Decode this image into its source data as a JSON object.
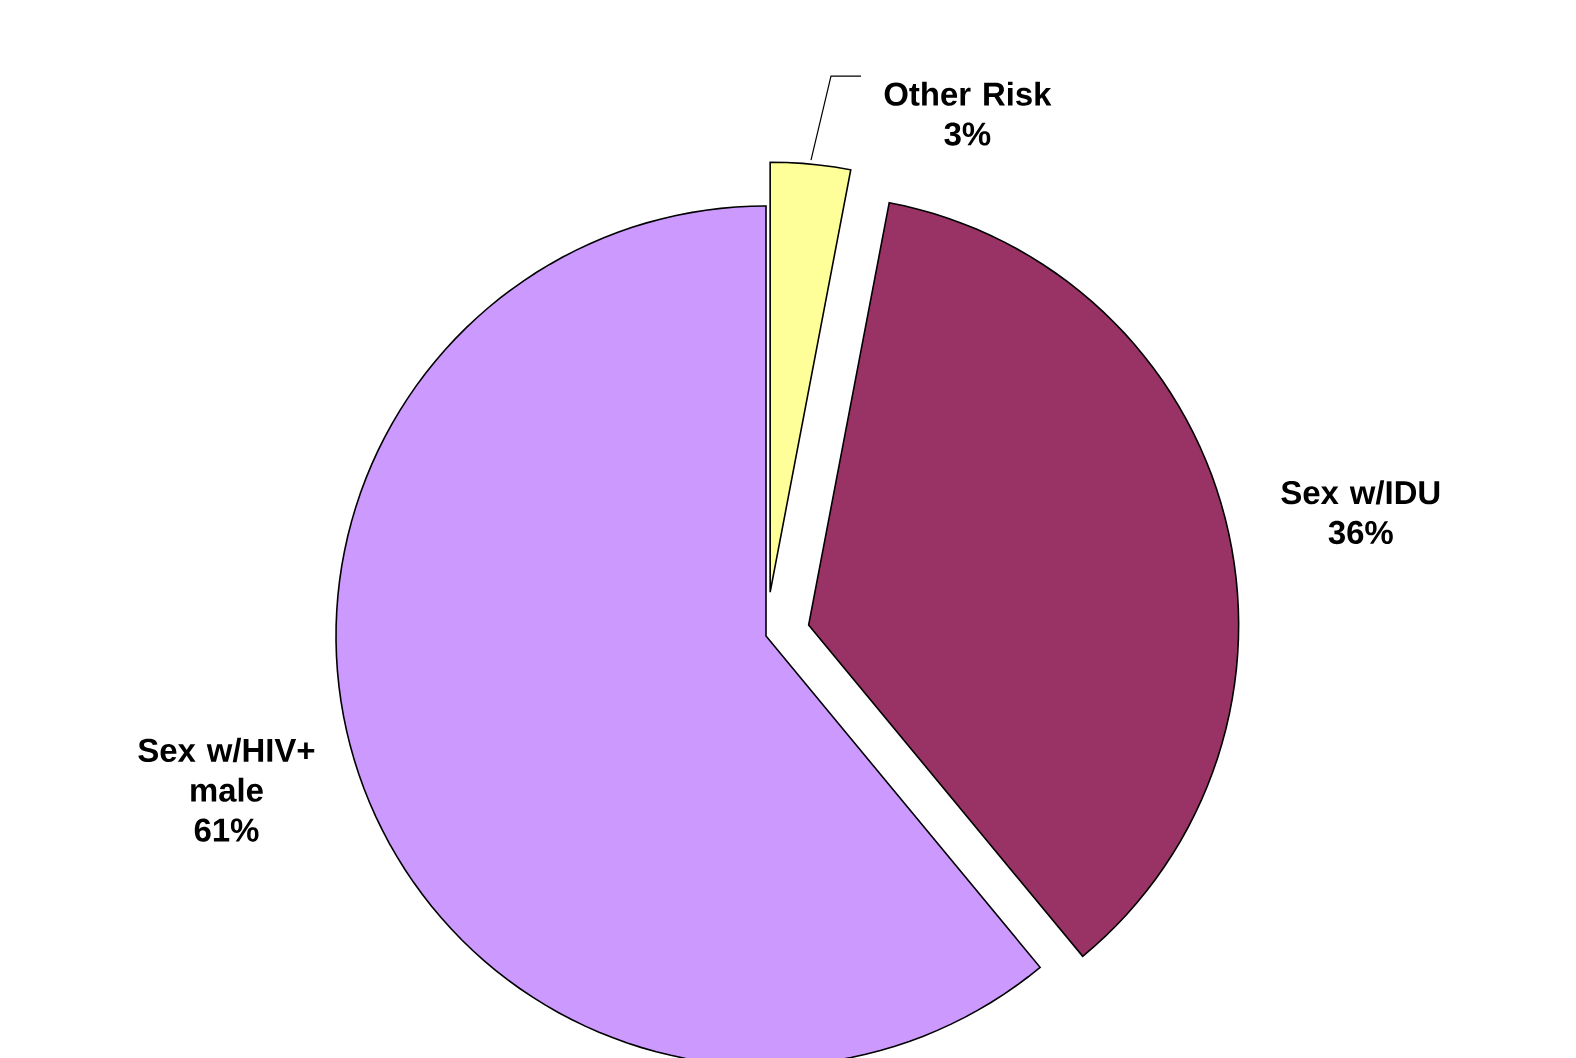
{
  "chart_data": {
    "type": "pie",
    "categories": [
      "Other Risk",
      "Sex w/IDU",
      "Sex w/HIV+ male"
    ],
    "values": [
      3,
      36,
      61
    ],
    "value_labels": [
      "3%",
      "36%",
      "61%"
    ],
    "colors": [
      "#ffff99",
      "#993366",
      "#cc99ff"
    ]
  }
}
